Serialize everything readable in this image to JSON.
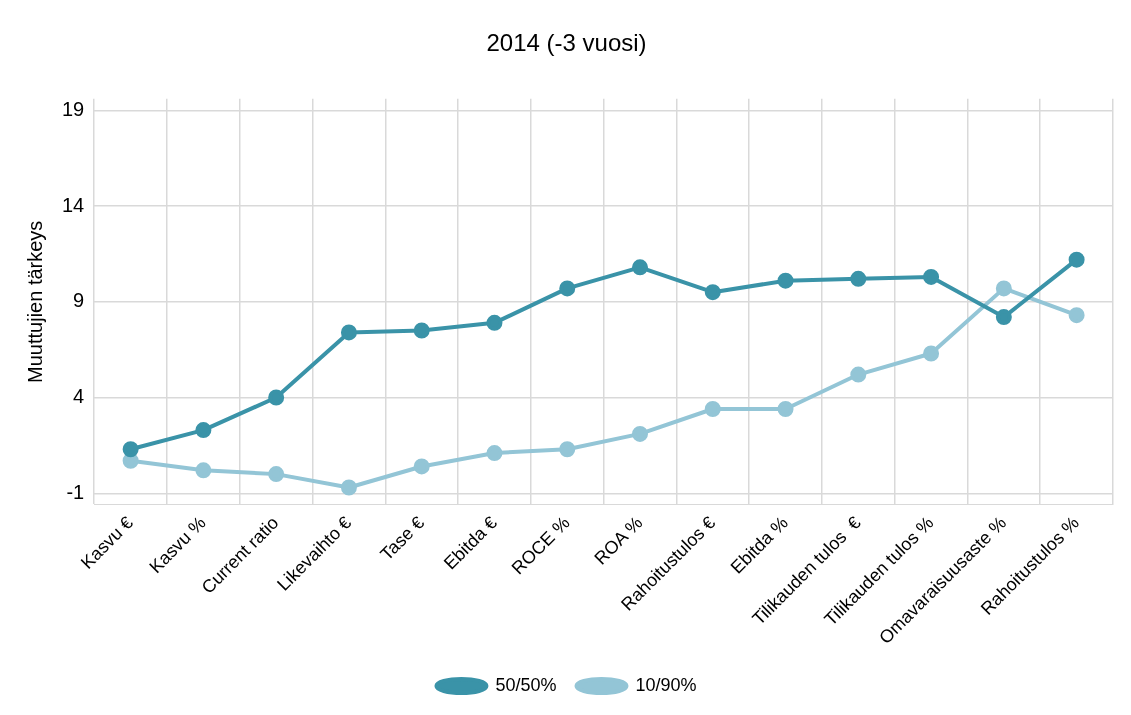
{
  "chart_data": {
    "type": "line",
    "title": "2014 (-3 vuosi)",
    "ylabel": "Muuttujien tärkeys",
    "categories": [
      "Kasvu €",
      "Kasvu %",
      "Current ratio",
      "Likevaihto €",
      "Tase €",
      "Ebitda €",
      "ROCE %",
      "ROA %",
      "Rahoitustulos €",
      "Ebitda %",
      "Tilikauden tulos  €",
      "Tilikauden tulos %",
      "Omavaraisuusaste %",
      "Rahoitustulos %"
    ],
    "series": [
      {
        "name": "50/50%",
        "color": "#3a93a8",
        "values": [
          1.3,
          2.3,
          4.0,
          7.4,
          7.5,
          7.9,
          9.7,
          10.8,
          9.5,
          10.1,
          10.2,
          10.3,
          8.2,
          11.2
        ]
      },
      {
        "name": "10/90%",
        "color": "#93c5d6",
        "values": [
          0.7,
          0.2,
          0.0,
          -0.7,
          0.4,
          1.1,
          1.3,
          2.1,
          3.4,
          3.4,
          5.2,
          6.3,
          9.7,
          8.3
        ]
      }
    ],
    "ylim": [
      -1.6,
      19.6
    ],
    "yticks": [
      -1,
      4,
      9,
      14,
      19
    ],
    "grid": true,
    "legend": "bottom",
    "marker": "circle",
    "line_style": "solid"
  }
}
